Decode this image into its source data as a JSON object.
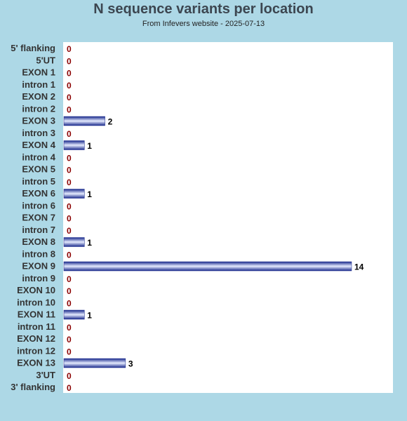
{
  "chart_data": {
    "type": "bar",
    "orientation": "horizontal",
    "title": "N sequence variants per location",
    "subtitle": "From Infevers website - 2025-07-13",
    "categories": [
      "5' flanking",
      "5'UT",
      "EXON 1",
      "intron 1",
      "EXON 2",
      "intron 2",
      "EXON 3",
      "intron 3",
      "EXON 4",
      "intron 4",
      "EXON 5",
      "intron 5",
      "EXON 6",
      "intron 6",
      "EXON 7",
      "intron 7",
      "EXON 8",
      "intron 8",
      "EXON 9",
      "intron 9",
      "EXON 10",
      "intron 10",
      "EXON 11",
      "intron 11",
      "EXON 12",
      "intron 12",
      "EXON 13",
      "3'UT",
      "3' flanking"
    ],
    "values": [
      0,
      0,
      0,
      0,
      0,
      0,
      2,
      0,
      1,
      0,
      0,
      0,
      1,
      0,
      0,
      0,
      1,
      0,
      14,
      0,
      0,
      0,
      1,
      0,
      0,
      0,
      3,
      0,
      0
    ],
    "xlim": [
      0,
      14
    ],
    "grid": false,
    "colors": {
      "background": "#add8e6",
      "plot_background": "#ffffff",
      "bar_dark": "#1a2a8c",
      "bar_light": "#e6ecff",
      "zero_label": "#8b0000",
      "value_label": "#000000"
    }
  }
}
